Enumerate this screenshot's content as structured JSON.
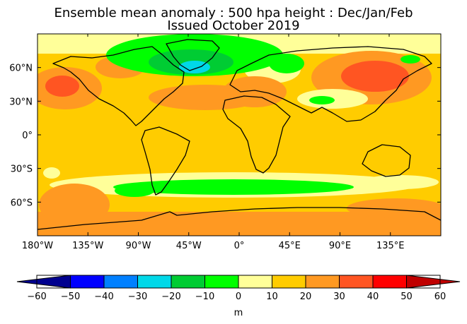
{
  "title_line1": "Ensemble mean anomaly : 500 hpa height : Dec/Jan/Feb",
  "title_line2": "Issued October 2019",
  "map": {
    "lon_ticks": [
      {
        "lon": -180,
        "label": "180°W"
      },
      {
        "lon": -135,
        "label": "135°W"
      },
      {
        "lon": -90,
        "label": "90°W"
      },
      {
        "lon": -45,
        "label": "45°W"
      },
      {
        "lon": 0,
        "label": "0°"
      },
      {
        "lon": 45,
        "label": "45°E"
      },
      {
        "lon": 90,
        "label": "90°E"
      },
      {
        "lon": 135,
        "label": "135°E"
      }
    ],
    "lat_ticks": [
      {
        "lat": 60,
        "label": "60°N"
      },
      {
        "lat": 30,
        "label": "30°N"
      },
      {
        "lat": 0,
        "label": "0°"
      },
      {
        "lat": -30,
        "label": "30°S"
      },
      {
        "lat": -60,
        "label": "60°S"
      }
    ]
  },
  "colorbar": {
    "unit": "m",
    "levels": [
      -60,
      -50,
      -40,
      -30,
      -20,
      -10,
      0,
      10,
      20,
      30,
      40,
      50,
      60
    ],
    "tick_labels": [
      "−60",
      "−50",
      "−40",
      "−30",
      "−20",
      "−10",
      "0",
      "10",
      "20",
      "30",
      "40",
      "50",
      "60"
    ],
    "colors": [
      "#00008f",
      "#0000ff",
      "#0080ff",
      "#00d8e8",
      "#00cc33",
      "#00ff00",
      "#ffff99",
      "#ffcc00",
      "#ff9922",
      "#ff5522",
      "#ff0000",
      "#c00000"
    ]
  }
}
